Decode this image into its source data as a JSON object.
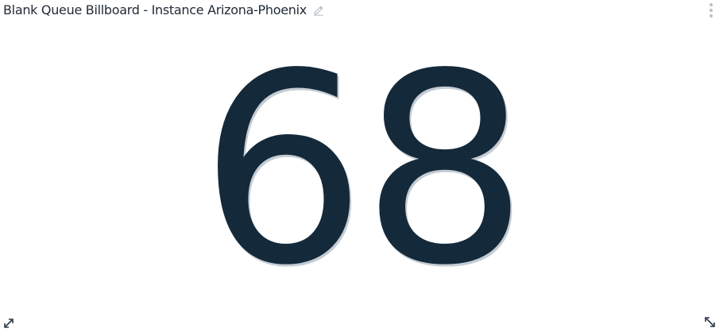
{
  "widget": {
    "title": "Blank Queue Billboard - Instance Arizona-Phoenix",
    "value": "68",
    "icons": {
      "edit": "pencil-icon",
      "menu": "vertical-dots-icon",
      "expand": "expand-arrows-icon",
      "resize": "resize-corner-icon"
    },
    "colors": {
      "value": "#14293a",
      "title": "#1e2a35",
      "icon": "#b9bfc5"
    }
  }
}
